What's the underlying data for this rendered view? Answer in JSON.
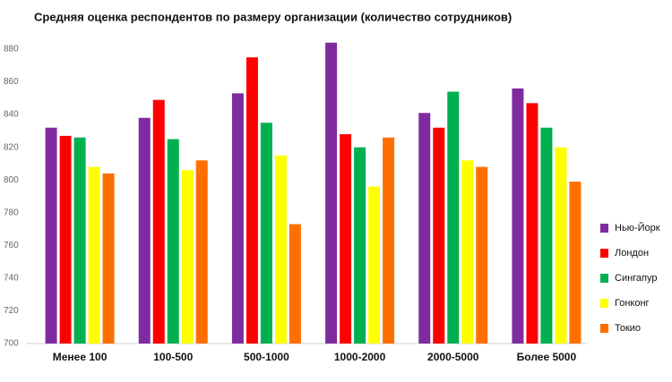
{
  "chart_data": {
    "type": "bar",
    "title": "Средняя оценка респондентов по размеру организации  (количество сотрудников)",
    "categories": [
      "Менее 100",
      "100-500",
      "500-1000",
      "1000-2000",
      "2000-5000",
      "Более 5000"
    ],
    "series": [
      {
        "name": "Нью-Йорк",
        "color": "#7f2b9f",
        "values": [
          832,
          838,
          853,
          884,
          841,
          856
        ]
      },
      {
        "name": "Лондон",
        "color": "#ff0000",
        "values": [
          827,
          849,
          875,
          828,
          832,
          847
        ]
      },
      {
        "name": "Сингапур",
        "color": "#00b050",
        "values": [
          826,
          825,
          835,
          820,
          854,
          832
        ]
      },
      {
        "name": "Гонконг",
        "color": "#ffff00",
        "values": [
          808,
          806,
          815,
          796,
          812,
          820
        ]
      },
      {
        "name": "Токио",
        "color": "#ff6f00",
        "values": [
          804,
          812,
          773,
          826,
          808,
          799
        ]
      }
    ],
    "ylim": [
      700,
      890
    ],
    "yticks": [
      700,
      720,
      740,
      760,
      780,
      800,
      820,
      840,
      860,
      880
    ],
    "grid": false,
    "legend": "right"
  }
}
